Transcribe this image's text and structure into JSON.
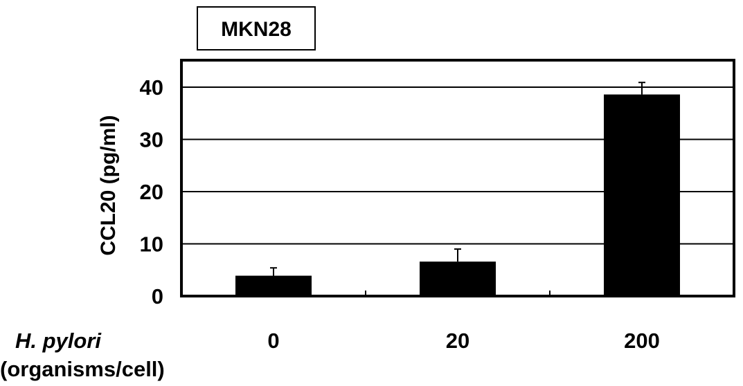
{
  "chart_data": {
    "type": "bar",
    "title": "MKN28",
    "ylabel": "CCL20 (pg/ml)",
    "xlabel_main": "H. pylori",
    "xlabel_sub": "(organisms/cell)",
    "categories": [
      "0",
      "20",
      "200"
    ],
    "values": [
      3.9,
      6.6,
      38.6
    ],
    "errors": [
      1.5,
      2.4,
      2.3
    ],
    "ylim": [
      0,
      45
    ],
    "yticks": [
      0,
      10,
      20,
      30,
      40
    ],
    "grid": true,
    "bar_color": "#000000"
  }
}
